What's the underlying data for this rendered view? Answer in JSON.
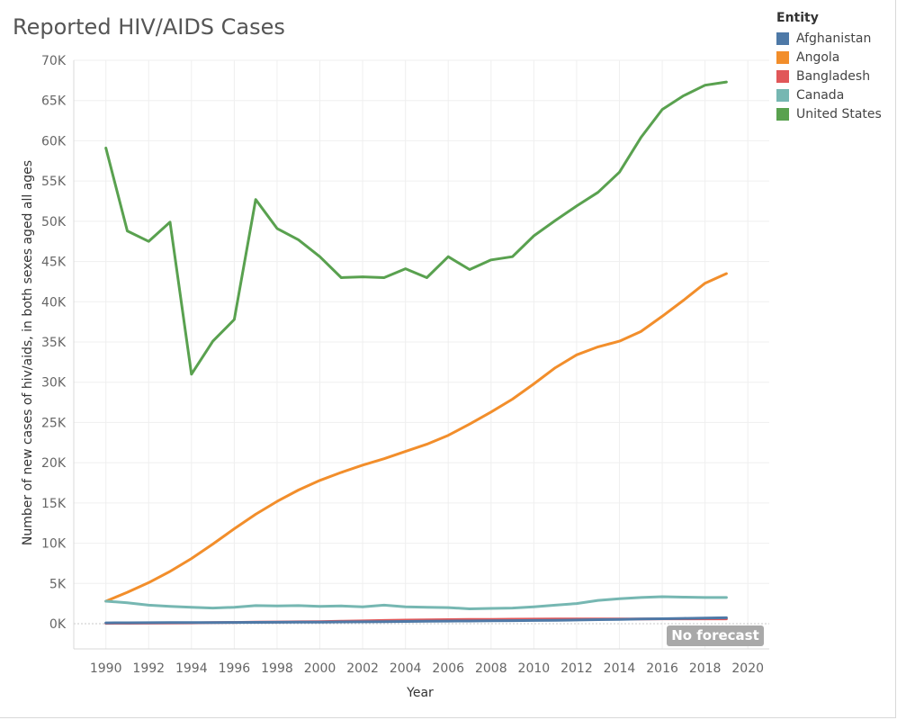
{
  "page": {
    "title": "Reported HIV/AIDS Cases",
    "no_forecast": "No forecast"
  },
  "legend": {
    "title": "Entity",
    "items": [
      {
        "label": "Afghanistan",
        "color": "#4e79a7"
      },
      {
        "label": "Angola",
        "color": "#f28e2b"
      },
      {
        "label": "Bangladesh",
        "color": "#e15759"
      },
      {
        "label": "Canada",
        "color": "#76b7b2"
      },
      {
        "label": "United States",
        "color": "#59a14f"
      }
    ]
  },
  "chart_data": {
    "type": "line",
    "title": "Reported HIV/AIDS Cases",
    "xlabel": "Year",
    "ylabel": "Number of new cases of hiv/aids, in both sexes aged all ages",
    "xlim": [
      1988.5,
      2021
    ],
    "ylim": [
      0,
      70000
    ],
    "x_ticks": [
      1990,
      1992,
      1994,
      1996,
      1998,
      2000,
      2002,
      2004,
      2006,
      2008,
      2010,
      2012,
      2014,
      2016,
      2018,
      2020
    ],
    "y_ticks": [
      0,
      5000,
      10000,
      15000,
      20000,
      25000,
      30000,
      35000,
      40000,
      45000,
      50000,
      55000,
      60000,
      65000,
      70000
    ],
    "y_tick_labels": [
      "0K",
      "5K",
      "10K",
      "15K",
      "20K",
      "25K",
      "30K",
      "35K",
      "40K",
      "45K",
      "50K",
      "55K",
      "60K",
      "65K",
      "70K"
    ],
    "x": [
      1990,
      1991,
      1992,
      1993,
      1994,
      1995,
      1996,
      1997,
      1998,
      1999,
      2000,
      2001,
      2002,
      2003,
      2004,
      2005,
      2006,
      2007,
      2008,
      2009,
      2010,
      2011,
      2012,
      2013,
      2014,
      2015,
      2016,
      2017,
      2018,
      2019
    ],
    "series": [
      {
        "name": "Afghanistan",
        "values": [
          100,
          110,
          120,
          130,
          140,
          150,
          160,
          170,
          180,
          190,
          200,
          220,
          240,
          260,
          280,
          300,
          320,
          340,
          360,
          380,
          400,
          430,
          460,
          500,
          540,
          580,
          620,
          660,
          700,
          740
        ]
      },
      {
        "name": "Angola",
        "values": [
          2800,
          3900,
          5100,
          6500,
          8100,
          9900,
          11800,
          13600,
          15200,
          16600,
          17800,
          18800,
          19700,
          20500,
          21400,
          22300,
          23400,
          24800,
          26300,
          27900,
          29800,
          31800,
          33400,
          34400,
          35100,
          36300,
          38200,
          40200,
          42300,
          43500
        ]
      },
      {
        "name": "Bangladesh",
        "values": [
          50,
          60,
          70,
          80,
          100,
          130,
          160,
          190,
          210,
          230,
          260,
          300,
          350,
          400,
          450,
          480,
          500,
          520,
          540,
          560,
          570,
          580,
          580,
          590,
          590,
          590,
          600,
          600,
          600,
          600
        ]
      },
      {
        "name": "Canada",
        "values": [
          2800,
          2600,
          2300,
          2150,
          2050,
          1950,
          2050,
          2250,
          2200,
          2250,
          2150,
          2200,
          2100,
          2300,
          2100,
          2050,
          2000,
          1850,
          1900,
          1950,
          2100,
          2300,
          2500,
          2900,
          3100,
          3250,
          3350,
          3300,
          3250,
          3250
        ]
      },
      {
        "name": "United States",
        "values": [
          59100,
          48800,
          47500,
          49900,
          31000,
          35100,
          37800,
          52700,
          49100,
          47700,
          45600,
          43000,
          43100,
          43000,
          44100,
          43000,
          45600,
          44000,
          45200,
          45600,
          48200,
          50100,
          51900,
          53600,
          56100,
          60400,
          63900,
          65600,
          66900,
          67300
        ]
      }
    ]
  }
}
